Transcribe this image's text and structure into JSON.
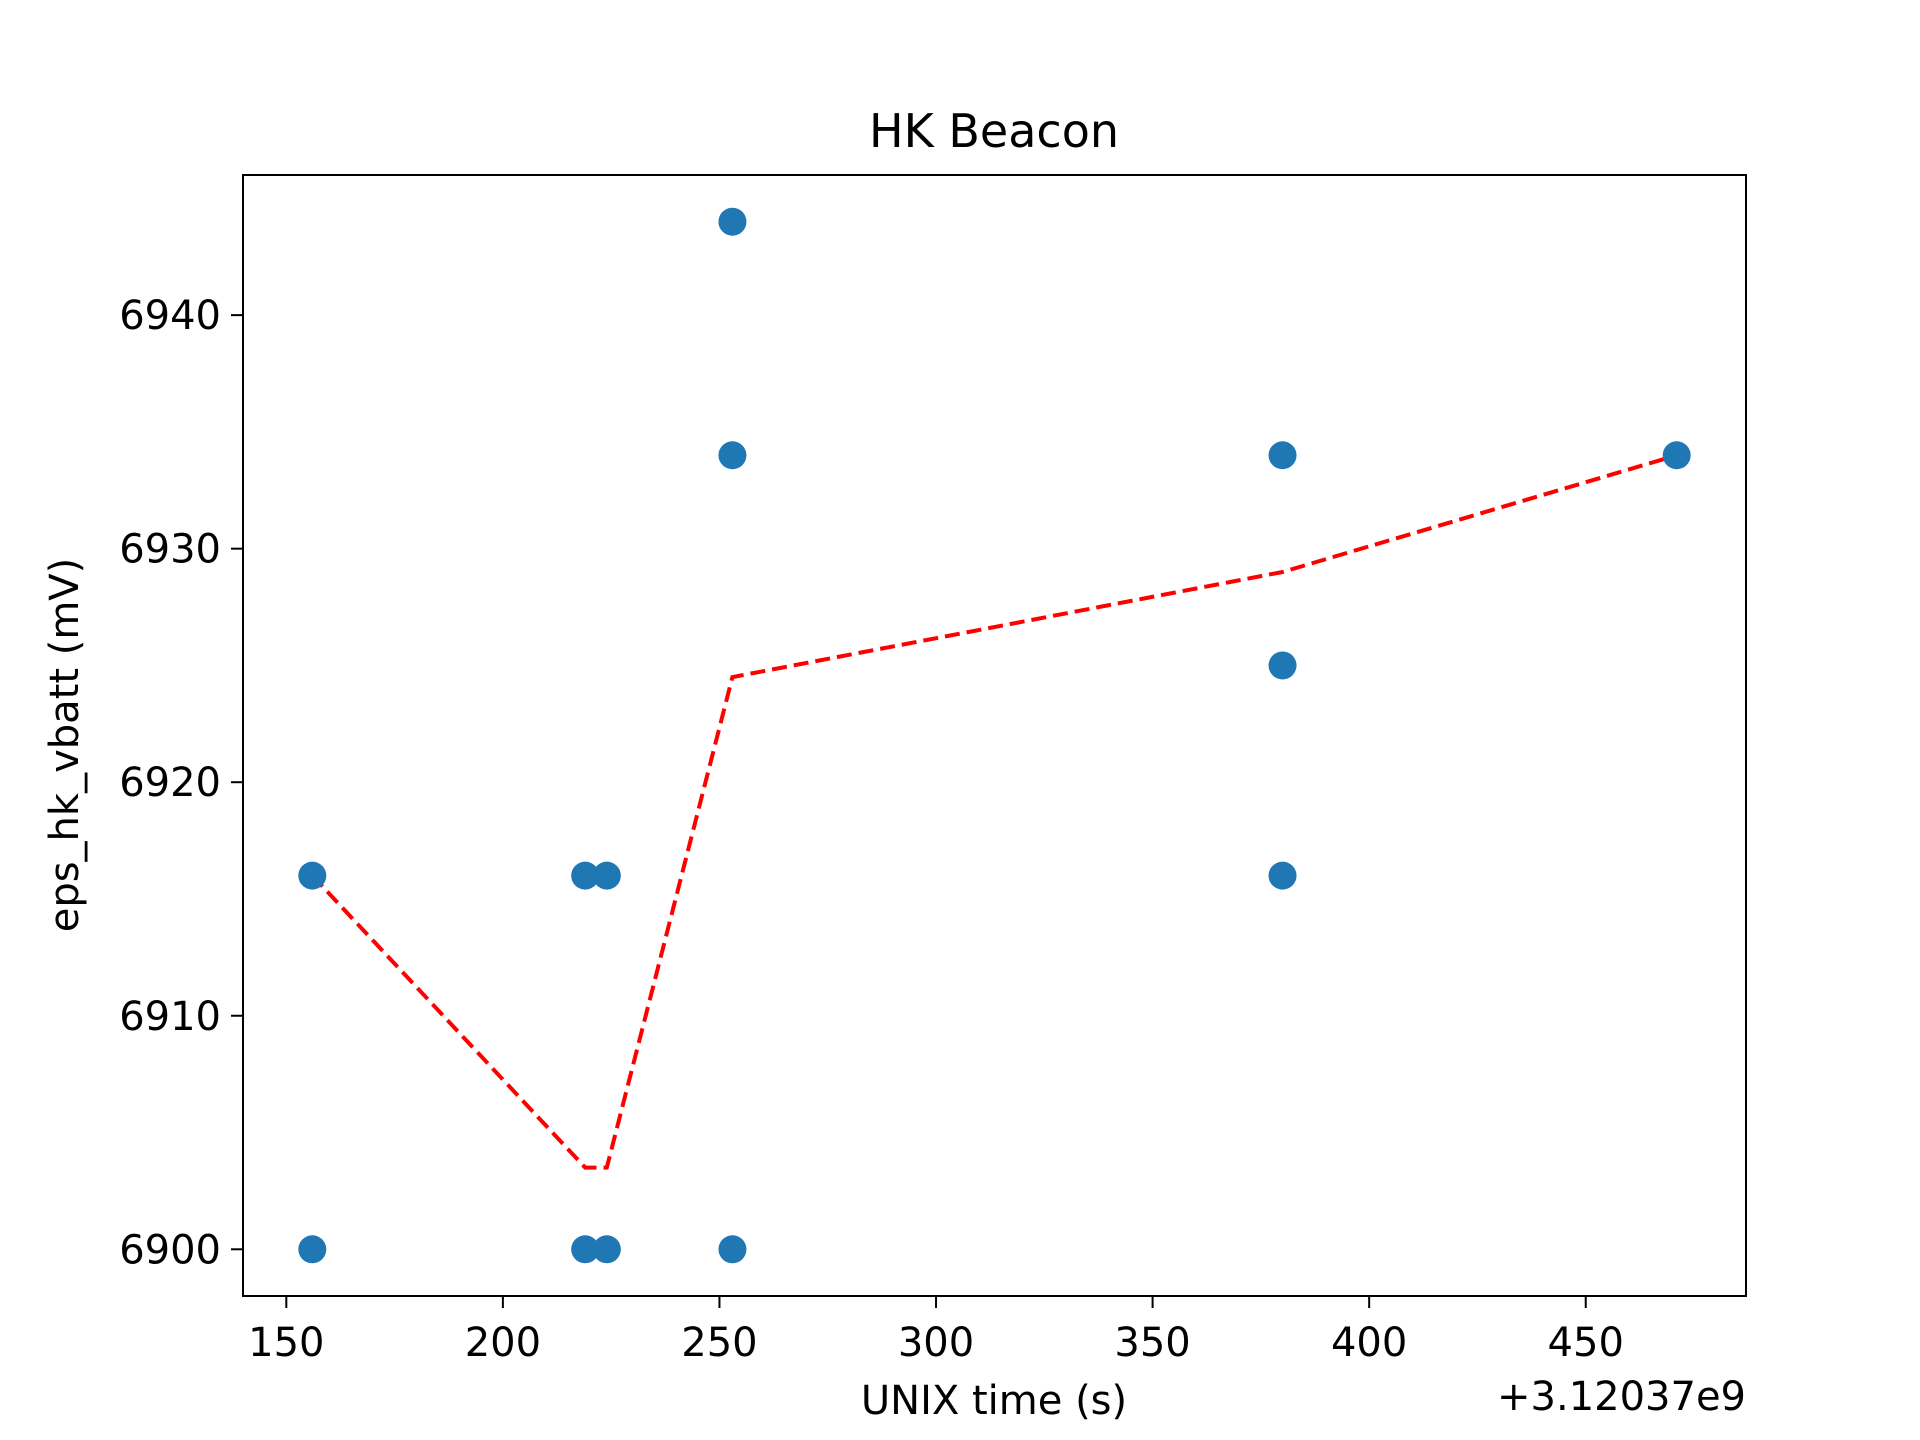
{
  "chart_data": {
    "type": "scatter",
    "title": "HK Beacon",
    "xlabel": "UNIX time (s)",
    "ylabel": "eps_hk_vbatt (mV)",
    "x_offset_label": "+3.12037e9",
    "xlim": [
      140,
      487
    ],
    "ylim": [
      6898,
      6946
    ],
    "xticks": [
      150,
      200,
      250,
      300,
      350,
      400,
      450
    ],
    "yticks": [
      6900,
      6910,
      6920,
      6930,
      6940
    ],
    "grid": false,
    "colors": {
      "points": "#1f77b4",
      "line": "#ff0000"
    },
    "series": [
      {
        "type": "scatter",
        "points": [
          [
            156,
            6916
          ],
          [
            156,
            6900
          ],
          [
            219,
            6916
          ],
          [
            224,
            6916
          ],
          [
            219,
            6900
          ],
          [
            224,
            6900
          ],
          [
            253,
            6944
          ],
          [
            253,
            6934
          ],
          [
            253,
            6900
          ],
          [
            380,
            6934
          ],
          [
            380,
            6925
          ],
          [
            380,
            6916
          ],
          [
            471,
            6934
          ]
        ]
      },
      {
        "type": "line",
        "style": "dashed",
        "points": [
          [
            156,
            6916
          ],
          [
            219,
            6903.5
          ],
          [
            224,
            6903.5
          ],
          [
            253,
            6924.5
          ],
          [
            380,
            6929
          ],
          [
            471,
            6934
          ]
        ]
      }
    ]
  }
}
